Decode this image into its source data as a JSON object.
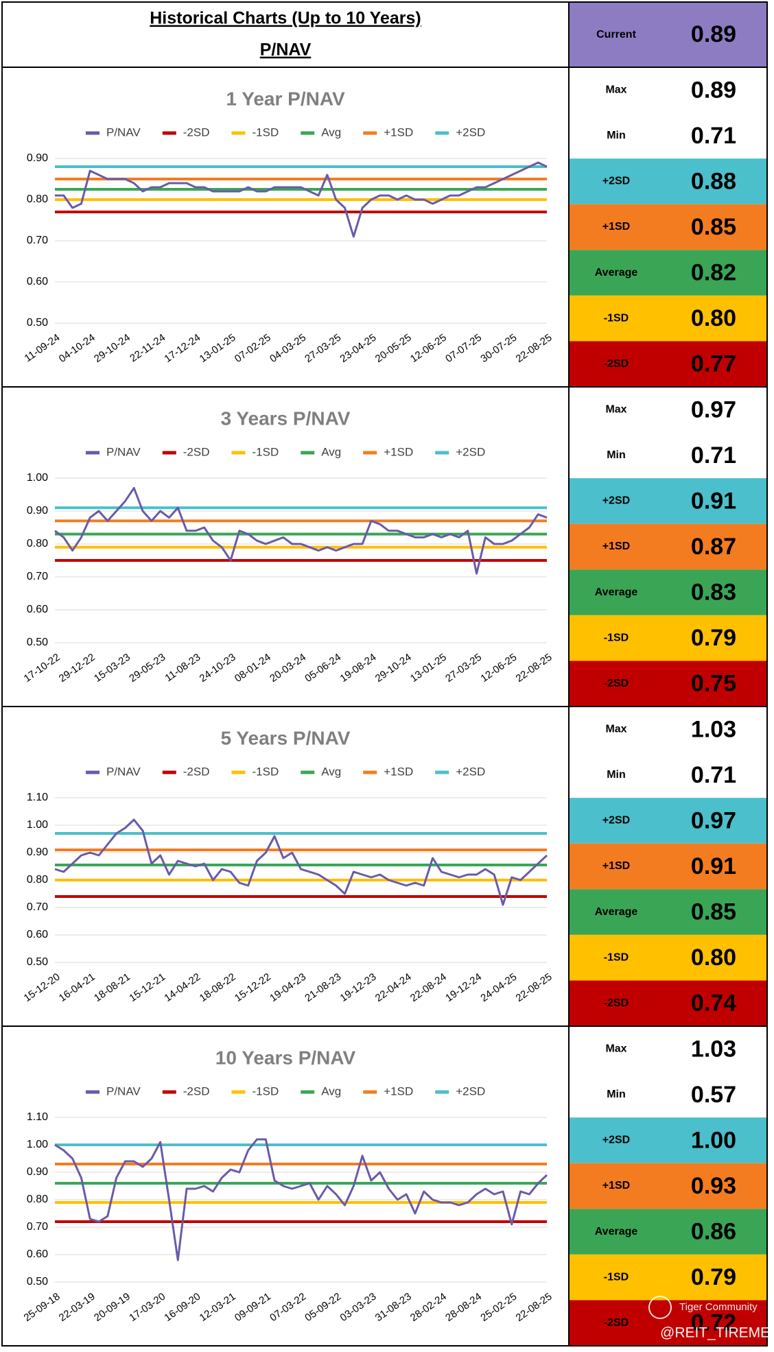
{
  "header": {
    "title": "Historical Charts (Up to 10 Years)",
    "subtitle": "P/NAV",
    "current_label": "Current",
    "current_value": "0.89",
    "current_color": "#8e7cc3"
  },
  "watermark": {
    "brand": "Tiger Community",
    "handle": "@REIT_TIREMENT"
  },
  "chart_data": [
    {
      "type": "line",
      "title": "1 Year P/NAV",
      "categories": [
        "11-09-24",
        null,
        null,
        null,
        "04-10-24",
        null,
        null,
        null,
        "29-10-24",
        null,
        null,
        null,
        "22-11-24",
        null,
        null,
        null,
        "17-12-24",
        null,
        null,
        null,
        "13-01-25",
        null,
        null,
        null,
        "07-02-25",
        null,
        null,
        null,
        "04-03-25",
        null,
        null,
        null,
        "27-03-25",
        null,
        null,
        null,
        "23-04-25",
        null,
        null,
        null,
        "20-05-25",
        null,
        null,
        null,
        "12-06-25",
        null,
        null,
        null,
        "07-07-25",
        null,
        null,
        null,
        "30-07-25",
        null,
        null,
        null,
        "22-08-25"
      ],
      "series": [
        {
          "name": "P/NAV",
          "color": "#6a5aa8",
          "values": [
            0.81,
            0.81,
            0.78,
            0.79,
            0.87,
            0.86,
            0.85,
            0.85,
            0.85,
            0.84,
            0.82,
            0.83,
            0.83,
            0.84,
            0.84,
            0.84,
            0.83,
            0.83,
            0.82,
            0.82,
            0.82,
            0.82,
            0.83,
            0.82,
            0.82,
            0.83,
            0.83,
            0.83,
            0.83,
            0.82,
            0.81,
            0.86,
            0.8,
            0.78,
            0.71,
            0.78,
            0.8,
            0.81,
            0.81,
            0.8,
            0.81,
            0.8,
            0.8,
            0.79,
            0.8,
            0.81,
            0.81,
            0.82,
            0.83,
            0.83,
            0.84,
            0.85,
            0.86,
            0.87,
            0.88,
            0.89,
            0.88
          ]
        },
        {
          "name": "-2SD",
          "color": "#c00000",
          "value": 0.77
        },
        {
          "name": "-1SD",
          "color": "#ffc000",
          "value": 0.8
        },
        {
          "name": "Avg",
          "color": "#3aa655",
          "value": 0.825
        },
        {
          "name": "+1SD",
          "color": "#f47c20",
          "value": 0.85
        },
        {
          "name": "+2SD",
          "color": "#4bbfcb",
          "value": 0.88
        }
      ],
      "ylim": [
        0.5,
        0.9
      ],
      "yticks": [
        {
          "value": 0.5,
          "label": "0.50"
        },
        {
          "value": 0.6,
          "label": "0.60"
        },
        {
          "value": 0.7,
          "label": "0.70"
        },
        {
          "value": 0.8,
          "label": "0.80"
        },
        {
          "value": 0.9,
          "label": "0.90"
        }
      ],
      "grid": true,
      "stats": [
        {
          "label": "Max",
          "value": "0.89",
          "color": "#ffffff"
        },
        {
          "label": "Min",
          "value": "0.71",
          "color": "#ffffff"
        },
        {
          "label": "+2SD",
          "value": "0.88",
          "color": "#4bbfcb"
        },
        {
          "label": "+1SD",
          "value": "0.85",
          "color": "#f47c20"
        },
        {
          "label": "Average",
          "value": "0.82",
          "color": "#3aa655"
        },
        {
          "label": "-1SD",
          "value": "0.80",
          "color": "#ffc000"
        },
        {
          "label": "-2SD",
          "value": "0.77",
          "color": "#c00000"
        }
      ]
    },
    {
      "type": "line",
      "title": "3 Years P/NAV",
      "categories": [
        "17-10-22",
        null,
        null,
        null,
        "29-12-22",
        null,
        null,
        null,
        "15-03-23",
        null,
        null,
        null,
        "29-05-23",
        null,
        null,
        null,
        "11-08-23",
        null,
        null,
        null,
        "24-10-23",
        null,
        null,
        null,
        "08-01-24",
        null,
        null,
        null,
        "20-03-24",
        null,
        null,
        null,
        "05-06-24",
        null,
        null,
        null,
        "19-08-24",
        null,
        null,
        null,
        "29-10-24",
        null,
        null,
        null,
        "13-01-25",
        null,
        null,
        null,
        "27-03-25",
        null,
        null,
        null,
        "12-06-25",
        null,
        null,
        null,
        "22-08-25"
      ],
      "series": [
        {
          "name": "P/NAV",
          "color": "#6a5aa8",
          "values": [
            0.84,
            0.82,
            0.78,
            0.82,
            0.88,
            0.9,
            0.87,
            0.9,
            0.93,
            0.97,
            0.9,
            0.87,
            0.9,
            0.88,
            0.91,
            0.84,
            0.84,
            0.85,
            0.81,
            0.79,
            0.75,
            0.84,
            0.83,
            0.81,
            0.8,
            0.81,
            0.82,
            0.8,
            0.8,
            0.79,
            0.78,
            0.79,
            0.78,
            0.79,
            0.8,
            0.8,
            0.87,
            0.86,
            0.84,
            0.84,
            0.83,
            0.82,
            0.82,
            0.83,
            0.82,
            0.83,
            0.82,
            0.84,
            0.71,
            0.82,
            0.8,
            0.8,
            0.81,
            0.83,
            0.85,
            0.89,
            0.88
          ]
        },
        {
          "name": "-2SD",
          "color": "#c00000",
          "value": 0.75
        },
        {
          "name": "-1SD",
          "color": "#ffc000",
          "value": 0.79
        },
        {
          "name": "Avg",
          "color": "#3aa655",
          "value": 0.83
        },
        {
          "name": "+1SD",
          "color": "#f47c20",
          "value": 0.87
        },
        {
          "name": "+2SD",
          "color": "#4bbfcb",
          "value": 0.91
        }
      ],
      "ylim": [
        0.5,
        1.0
      ],
      "yticks": [
        {
          "value": 0.5,
          "label": "0.50"
        },
        {
          "value": 0.6,
          "label": "0.60"
        },
        {
          "value": 0.7,
          "label": "0.70"
        },
        {
          "value": 0.8,
          "label": "0.80"
        },
        {
          "value": 0.9,
          "label": "0.90"
        },
        {
          "value": 1.0,
          "label": "1.00"
        }
      ],
      "grid": true,
      "stats": [
        {
          "label": "Max",
          "value": "0.97",
          "color": "#ffffff"
        },
        {
          "label": "Min",
          "value": "0.71",
          "color": "#ffffff"
        },
        {
          "label": "+2SD",
          "value": "0.91",
          "color": "#4bbfcb"
        },
        {
          "label": "+1SD",
          "value": "0.87",
          "color": "#f47c20"
        },
        {
          "label": "Average",
          "value": "0.83",
          "color": "#3aa655"
        },
        {
          "label": "-1SD",
          "value": "0.79",
          "color": "#ffc000"
        },
        {
          "label": "-2SD",
          "value": "0.75",
          "color": "#c00000"
        }
      ]
    },
    {
      "type": "line",
      "title": "5 Years P/NAV",
      "categories": [
        "15-12-20",
        null,
        null,
        null,
        "16-04-21",
        null,
        null,
        null,
        "18-08-21",
        null,
        null,
        null,
        "15-12-21",
        null,
        null,
        null,
        "14-04-22",
        null,
        null,
        null,
        "18-08-22",
        null,
        null,
        null,
        "15-12-22",
        null,
        null,
        null,
        "19-04-23",
        null,
        null,
        null,
        "21-08-23",
        null,
        null,
        null,
        "19-12-23",
        null,
        null,
        null,
        "22-04-24",
        null,
        null,
        null,
        "22-08-24",
        null,
        null,
        null,
        "19-12-24",
        null,
        null,
        null,
        "24-04-25",
        null,
        null,
        null,
        "22-08-25"
      ],
      "series": [
        {
          "name": "P/NAV",
          "color": "#6a5aa8",
          "values": [
            0.84,
            0.83,
            0.86,
            0.89,
            0.9,
            0.89,
            0.93,
            0.97,
            0.99,
            1.02,
            0.98,
            0.86,
            0.89,
            0.82,
            0.87,
            0.86,
            0.85,
            0.86,
            0.8,
            0.84,
            0.83,
            0.79,
            0.78,
            0.87,
            0.9,
            0.96,
            0.88,
            0.9,
            0.84,
            0.83,
            0.82,
            0.8,
            0.78,
            0.75,
            0.83,
            0.82,
            0.81,
            0.82,
            0.8,
            0.79,
            0.78,
            0.79,
            0.78,
            0.88,
            0.83,
            0.82,
            0.81,
            0.82,
            0.82,
            0.84,
            0.82,
            0.71,
            0.81,
            0.8,
            0.83,
            0.86,
            0.89
          ]
        },
        {
          "name": "-2SD",
          "color": "#c00000",
          "value": 0.74
        },
        {
          "name": "-1SD",
          "color": "#ffc000",
          "value": 0.8
        },
        {
          "name": "Avg",
          "color": "#3aa655",
          "value": 0.855
        },
        {
          "name": "+1SD",
          "color": "#f47c20",
          "value": 0.91
        },
        {
          "name": "+2SD",
          "color": "#4bbfcb",
          "value": 0.97
        }
      ],
      "ylim": [
        0.5,
        1.1
      ],
      "yticks": [
        {
          "value": 0.5,
          "label": "0.50"
        },
        {
          "value": 0.6,
          "label": "0.60"
        },
        {
          "value": 0.7,
          "label": "0.70"
        },
        {
          "value": 0.8,
          "label": "0.80"
        },
        {
          "value": 0.9,
          "label": "0.90"
        },
        {
          "value": 1.0,
          "label": "1.00"
        },
        {
          "value": 1.1,
          "label": "1.10"
        }
      ],
      "grid": true,
      "stats": [
        {
          "label": "Max",
          "value": "1.03",
          "color": "#ffffff"
        },
        {
          "label": "Min",
          "value": "0.71",
          "color": "#ffffff"
        },
        {
          "label": "+2SD",
          "value": "0.97",
          "color": "#4bbfcb"
        },
        {
          "label": "+1SD",
          "value": "0.91",
          "color": "#f47c20"
        },
        {
          "label": "Average",
          "value": "0.85",
          "color": "#3aa655"
        },
        {
          "label": "-1SD",
          "value": "0.80",
          "color": "#ffc000"
        },
        {
          "label": "-2SD",
          "value": "0.74",
          "color": "#c00000"
        }
      ]
    },
    {
      "type": "line",
      "title": "10 Years P/NAV",
      "categories": [
        "25-09-18",
        null,
        null,
        null,
        "22-03-19",
        null,
        null,
        null,
        "20-09-19",
        null,
        null,
        null,
        "17-03-20",
        null,
        null,
        null,
        "16-09-20",
        null,
        null,
        null,
        "12-03-21",
        null,
        null,
        null,
        "09-09-21",
        null,
        null,
        null,
        "07-03-22",
        null,
        null,
        null,
        "05-09-22",
        null,
        null,
        null,
        "03-03-23",
        null,
        null,
        null,
        "31-08-23",
        null,
        null,
        null,
        "28-02-24",
        null,
        null,
        null,
        "28-08-24",
        null,
        null,
        null,
        "25-02-25",
        null,
        null,
        null,
        "22-08-25"
      ],
      "series": [
        {
          "name": "P/NAV",
          "color": "#6a5aa8",
          "values": [
            1.0,
            0.98,
            0.95,
            0.88,
            0.73,
            0.72,
            0.74,
            0.88,
            0.94,
            0.94,
            0.92,
            0.95,
            1.01,
            0.8,
            0.58,
            0.84,
            0.84,
            0.85,
            0.83,
            0.88,
            0.91,
            0.9,
            0.98,
            1.02,
            1.02,
            0.87,
            0.85,
            0.84,
            0.85,
            0.86,
            0.8,
            0.85,
            0.82,
            0.78,
            0.85,
            0.96,
            0.87,
            0.9,
            0.84,
            0.8,
            0.82,
            0.75,
            0.83,
            0.8,
            0.79,
            0.79,
            0.78,
            0.79,
            0.82,
            0.84,
            0.82,
            0.83,
            0.71,
            0.83,
            0.82,
            0.86,
            0.89
          ]
        },
        {
          "name": "-2SD",
          "color": "#c00000",
          "value": 0.72
        },
        {
          "name": "-1SD",
          "color": "#ffc000",
          "value": 0.79
        },
        {
          "name": "Avg",
          "color": "#3aa655",
          "value": 0.86
        },
        {
          "name": "+1SD",
          "color": "#f47c20",
          "value": 0.93
        },
        {
          "name": "+2SD",
          "color": "#4bbfcb",
          "value": 1.0
        }
      ],
      "ylim": [
        0.5,
        1.1
      ],
      "yticks": [
        {
          "value": 0.5,
          "label": "0.50"
        },
        {
          "value": 0.6,
          "label": "0.60"
        },
        {
          "value": 0.7,
          "label": "0.70"
        },
        {
          "value": 0.8,
          "label": "0.80"
        },
        {
          "value": 0.9,
          "label": "0.90"
        },
        {
          "value": 1.0,
          "label": "1.00"
        },
        {
          "value": 1.1,
          "label": "1.10"
        }
      ],
      "grid": true,
      "stats": [
        {
          "label": "Max",
          "value": "1.03",
          "color": "#ffffff"
        },
        {
          "label": "Min",
          "value": "0.57",
          "color": "#ffffff"
        },
        {
          "label": "+2SD",
          "value": "1.00",
          "color": "#4bbfcb"
        },
        {
          "label": "+1SD",
          "value": "0.93",
          "color": "#f47c20"
        },
        {
          "label": "Average",
          "value": "0.86",
          "color": "#3aa655"
        },
        {
          "label": "-1SD",
          "value": "0.79",
          "color": "#ffc000"
        },
        {
          "label": "-2SD",
          "value": "0.72",
          "color": "#c00000"
        }
      ]
    }
  ]
}
